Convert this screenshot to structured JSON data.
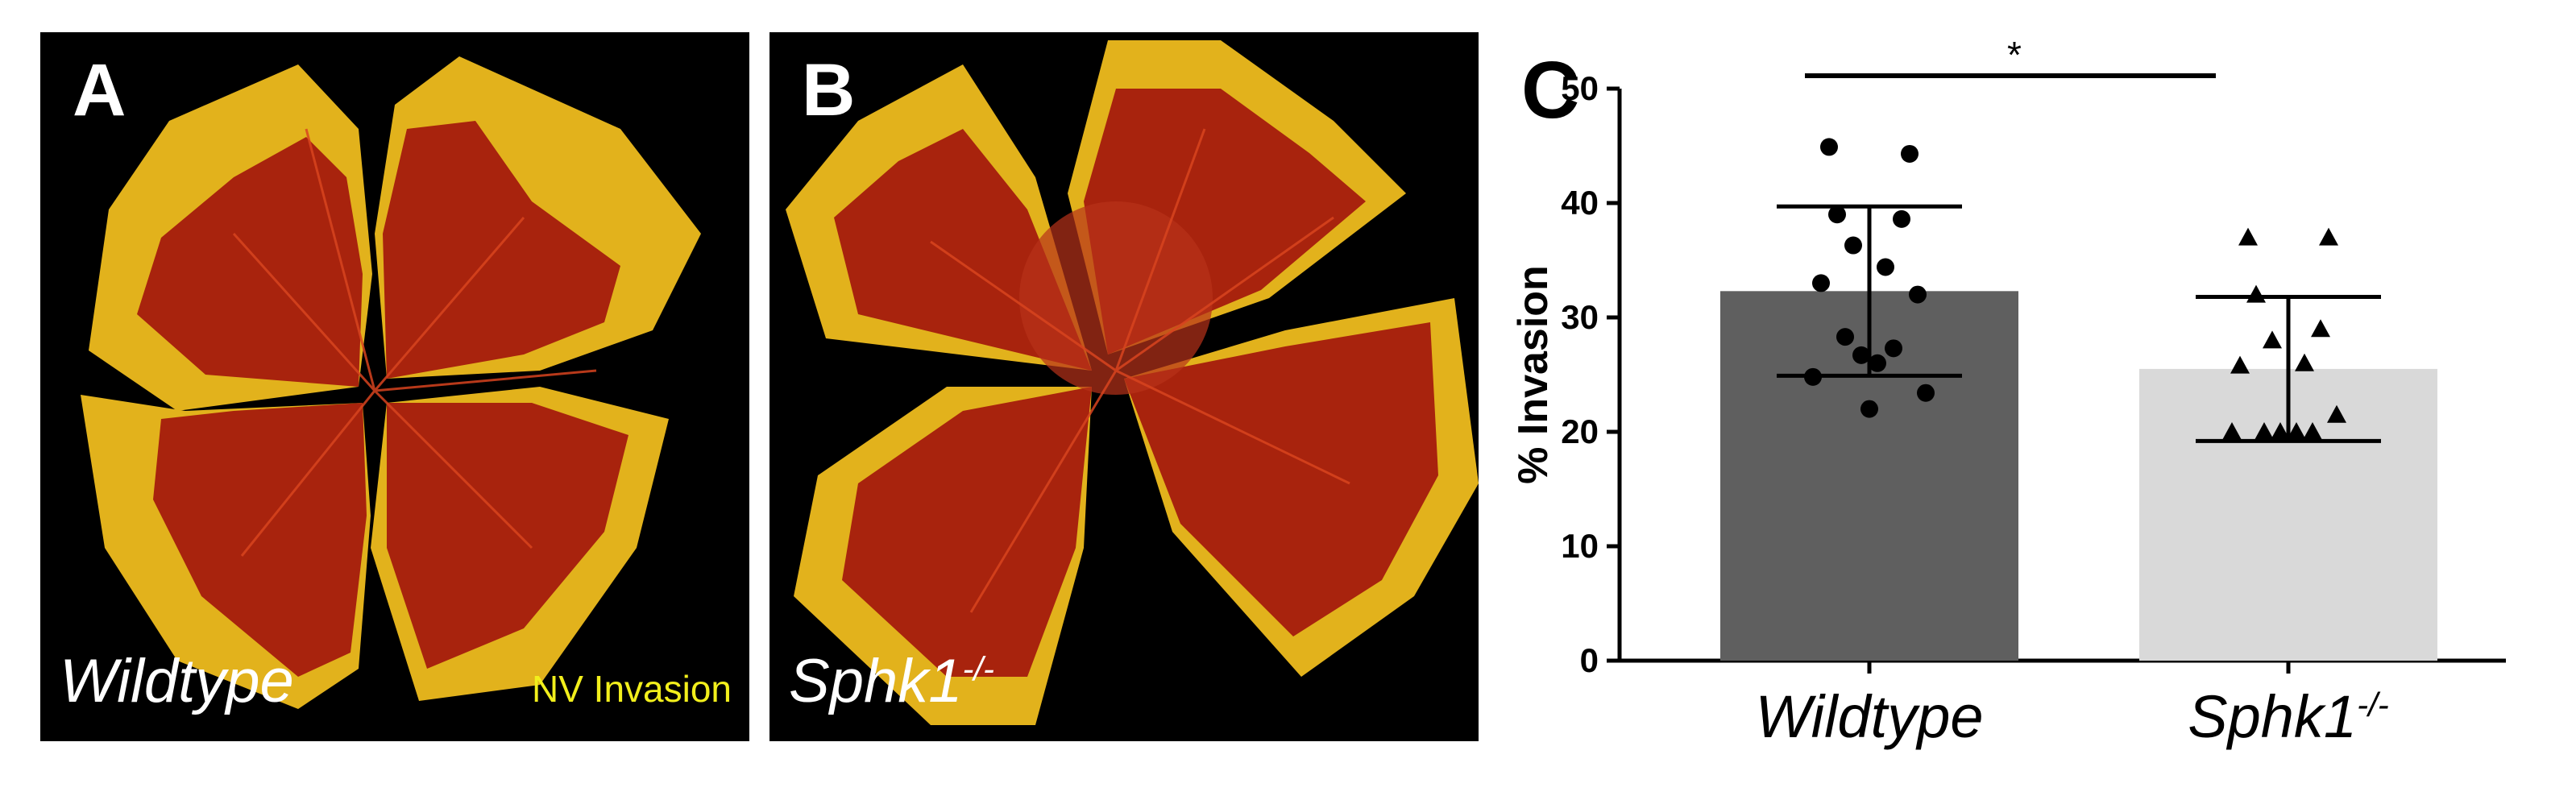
{
  "panels": {
    "a": {
      "letter": "A",
      "genotype": "Wildtype",
      "legend": "NV Invasion"
    },
    "b": {
      "letter": "B",
      "genotype_main": "Sphk1",
      "genotype_sup": "-/-"
    }
  },
  "colors": {
    "retina_red": "#b3250e",
    "invasion_yellow": "#e8b820",
    "legend_yellow": "#f2ef1c",
    "bar_wildtype": "#5f5f5f",
    "bar_sphk1": "#d9d9d9"
  },
  "chart_data": {
    "type": "bar",
    "panel_letter": "C",
    "ylabel": "% Invasion",
    "ylim": [
      0,
      50
    ],
    "yticks": [
      "0",
      "10",
      "20",
      "30",
      "40",
      "50"
    ],
    "categories": [
      {
        "main": "Wildtype",
        "sup": ""
      },
      {
        "main": "Sphk1",
        "sup": "-/-"
      }
    ],
    "values": [
      32.3,
      25.5
    ],
    "sd": [
      7.4,
      6.3
    ],
    "points": [
      [
        44.9,
        44.3,
        39.0,
        38.6,
        36.3,
        34.4,
        33.0,
        32.0,
        28.3,
        27.3,
        26.7,
        26.0,
        24.8,
        23.4,
        22.0
      ],
      [
        37.0,
        37.0,
        32.0,
        29.0,
        28.0,
        26.0,
        25.8,
        21.5,
        20.0,
        20.0,
        20.0,
        20.0,
        20.0
      ]
    ],
    "significance": "*"
  }
}
